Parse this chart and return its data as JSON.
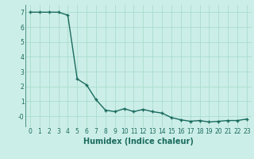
{
  "xlabel": "Humidex (Indice chaleur)",
  "x": [
    0,
    1,
    2,
    3,
    4,
    5,
    6,
    7,
    8,
    9,
    10,
    11,
    12,
    13,
    14,
    15,
    16,
    17,
    18,
    19,
    20,
    21,
    22,
    23
  ],
  "y": [
    7.0,
    7.0,
    7.0,
    7.0,
    6.8,
    2.5,
    2.1,
    1.1,
    0.4,
    0.3,
    0.5,
    0.3,
    0.45,
    0.3,
    0.2,
    -0.1,
    -0.25,
    -0.35,
    -0.3,
    -0.4,
    -0.35,
    -0.3,
    -0.3,
    -0.2
  ],
  "line_color": "#1a6b5e",
  "marker": "+",
  "marker_size": 3.5,
  "marker_linewidth": 1.0,
  "line_width": 1.0,
  "background_color": "#cceee8",
  "grid_color": "#aaddcc",
  "tick_color": "#1a6b5e",
  "label_color": "#1a6b5e",
  "ylim": [
    -0.75,
    7.5
  ],
  "xlim": [
    -0.5,
    23.5
  ],
  "yticks": [
    0,
    1,
    2,
    3,
    4,
    5,
    6,
    7
  ],
  "ytick_labels": [
    "-0",
    "1",
    "2",
    "3",
    "4",
    "5",
    "6",
    "7"
  ],
  "xtick_labels": [
    "0",
    "1",
    "2",
    "3",
    "4",
    "5",
    "6",
    "7",
    "8",
    "9",
    "10",
    "11",
    "12",
    "13",
    "14",
    "15",
    "16",
    "17",
    "18",
    "19",
    "20",
    "21",
    "22",
    "23"
  ],
  "xlabel_fontsize": 7,
  "tick_fontsize": 5.5,
  "xlabel_fontweight": "bold"
}
